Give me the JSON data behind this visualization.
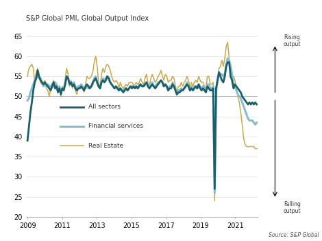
{
  "title": "S&P Global PMI, Global Output Index",
  "source_text": "Source: S&P Global",
  "rising_text": "Rising\noutput",
  "falling_text": "Falling\noutput",
  "color_all": "#1a5f6a",
  "color_fin": "#8bbccc",
  "color_re": "#c8a84b",
  "lw_all": 2.0,
  "lw_fin": 2.2,
  "lw_re": 1.1,
  "hline_y": 50,
  "hline_color": "#bbbbbb",
  "ylim": [
    20,
    68
  ],
  "yticks": [
    20,
    25,
    30,
    35,
    40,
    45,
    50,
    55,
    60,
    65
  ],
  "xtick_years": [
    2009,
    2011,
    2013,
    2015,
    2017,
    2019,
    2021
  ],
  "start_year": 2009.0,
  "end_year": 2022.5,
  "n_points": 162,
  "all_sectors": [
    39.0,
    42.5,
    46.0,
    48.5,
    51.5,
    53.5,
    54.5,
    56.5,
    55.0,
    54.0,
    53.5,
    53.0,
    53.5,
    53.0,
    52.5,
    52.0,
    51.5,
    52.5,
    53.5,
    52.0,
    52.5,
    51.0,
    52.0,
    50.5,
    52.0,
    51.5,
    53.0,
    55.0,
    54.5,
    53.0,
    53.5,
    52.5,
    53.0,
    52.0,
    51.5,
    52.0,
    52.0,
    52.5,
    52.0,
    51.5,
    52.5,
    53.0,
    52.5,
    52.0,
    52.5,
    53.5,
    54.0,
    54.5,
    53.5,
    52.5,
    52.0,
    53.5,
    54.0,
    53.5,
    54.0,
    55.0,
    54.5,
    53.5,
    53.0,
    52.5,
    52.0,
    52.5,
    52.0,
    51.5,
    52.0,
    51.5,
    51.0,
    51.5,
    52.0,
    51.5,
    52.0,
    52.5,
    52.0,
    52.5,
    52.0,
    52.5,
    52.0,
    52.5,
    53.0,
    52.5,
    52.5,
    53.0,
    53.5,
    52.5,
    52.0,
    52.5,
    53.0,
    52.5,
    52.0,
    52.5,
    53.0,
    53.5,
    54.0,
    53.5,
    52.5,
    53.0,
    52.5,
    51.5,
    52.0,
    52.0,
    53.0,
    52.5,
    51.5,
    50.5,
    51.0,
    51.0,
    51.5,
    51.5,
    52.0,
    52.5,
    53.0,
    52.5,
    51.5,
    52.0,
    51.5,
    52.0,
    52.5,
    52.0,
    53.0,
    52.0,
    51.5,
    52.0,
    51.5,
    51.0,
    52.5,
    52.0,
    51.5,
    51.5,
    52.0,
    27.0,
    52.0,
    54.0,
    56.0,
    55.0,
    54.0,
    53.5,
    55.0,
    57.5,
    58.5,
    58.5,
    55.0,
    54.0,
    52.0,
    53.0,
    52.5,
    52.0,
    51.5,
    51.0,
    50.0,
    49.5,
    49.0,
    48.5,
    48.0,
    48.5,
    48.0,
    48.5,
    48.0,
    48.5,
    48.0,
    48.0,
    48.0,
    48.0
  ],
  "financial": [
    49.0,
    49.5,
    51.0,
    52.0,
    53.0,
    54.0,
    54.5,
    55.5,
    54.5,
    54.5,
    53.5,
    52.5,
    53.0,
    52.5,
    53.0,
    52.5,
    52.5,
    53.0,
    53.5,
    53.5,
    53.0,
    52.0,
    52.5,
    51.5,
    52.0,
    52.0,
    53.5,
    55.0,
    54.5,
    53.5,
    53.5,
    53.0,
    53.5,
    52.5,
    52.0,
    52.5,
    52.5,
    53.0,
    52.5,
    52.0,
    52.0,
    52.5,
    52.0,
    52.5,
    52.5,
    53.0,
    54.5,
    55.0,
    53.5,
    52.5,
    52.0,
    54.0,
    54.5,
    54.0,
    54.5,
    55.0,
    54.5,
    53.5,
    53.0,
    52.5,
    52.0,
    52.5,
    52.0,
    51.5,
    52.0,
    51.5,
    51.5,
    52.0,
    52.0,
    51.5,
    52.0,
    52.5,
    52.5,
    52.5,
    52.5,
    52.5,
    52.0,
    53.0,
    53.0,
    52.5,
    52.5,
    53.0,
    53.5,
    53.0,
    52.5,
    53.0,
    53.5,
    52.5,
    52.5,
    53.0,
    53.5,
    53.5,
    54.0,
    53.5,
    52.5,
    53.0,
    52.5,
    51.5,
    52.5,
    52.5,
    53.5,
    52.5,
    51.5,
    50.5,
    51.5,
    51.5,
    52.0,
    51.5,
    52.0,
    52.5,
    53.5,
    52.5,
    51.5,
    52.5,
    51.5,
    52.5,
    52.5,
    52.0,
    53.0,
    52.5,
    52.0,
    52.5,
    52.0,
    51.5,
    53.0,
    53.0,
    52.0,
    52.0,
    52.5,
    26.0,
    51.5,
    54.0,
    56.0,
    55.5,
    55.5,
    55.0,
    55.5,
    58.0,
    59.5,
    59.0,
    57.5,
    55.5,
    53.0,
    52.5,
    51.5,
    50.5,
    50.0,
    49.5,
    48.5,
    47.5,
    46.5,
    45.5,
    44.5,
    44.0,
    44.0,
    44.0,
    43.5,
    43.0,
    43.5,
    43.5,
    43.5,
    43.5
  ],
  "real_estate": [
    55.0,
    57.0,
    57.5,
    58.0,
    57.0,
    53.5,
    56.0,
    57.0,
    55.0,
    53.5,
    53.0,
    53.5,
    54.0,
    52.0,
    51.5,
    50.0,
    52.0,
    53.0,
    54.0,
    52.5,
    53.0,
    51.5,
    52.5,
    50.0,
    52.5,
    51.5,
    54.5,
    57.0,
    55.5,
    52.5,
    54.0,
    52.0,
    53.0,
    51.5,
    50.5,
    52.0,
    52.0,
    53.0,
    52.0,
    51.0,
    53.0,
    55.0,
    54.5,
    54.5,
    55.0,
    56.0,
    58.5,
    60.0,
    57.5,
    53.5,
    52.0,
    55.5,
    57.0,
    56.0,
    57.5,
    58.0,
    57.5,
    56.5,
    55.0,
    54.0,
    53.5,
    54.0,
    53.5,
    52.0,
    53.5,
    52.5,
    52.0,
    52.5,
    53.0,
    52.5,
    53.5,
    53.5,
    53.5,
    53.0,
    53.0,
    53.5,
    53.0,
    53.5,
    54.5,
    53.5,
    53.0,
    54.5,
    55.5,
    53.5,
    52.5,
    54.5,
    55.5,
    54.5,
    53.5,
    54.0,
    55.0,
    55.5,
    56.5,
    55.0,
    54.0,
    55.5,
    55.0,
    53.5,
    54.0,
    54.0,
    55.0,
    54.5,
    52.5,
    51.0,
    52.5,
    52.5,
    53.5,
    52.5,
    53.5,
    54.0,
    55.0,
    54.0,
    52.0,
    53.5,
    52.5,
    53.5,
    54.0,
    53.5,
    55.0,
    54.0,
    53.5,
    53.5,
    52.5,
    52.0,
    55.0,
    55.0,
    53.0,
    53.0,
    53.5,
    24.0,
    49.0,
    54.0,
    57.0,
    57.5,
    59.0,
    57.5,
    59.5,
    62.5,
    63.5,
    59.5,
    56.0,
    54.5,
    55.0,
    54.0,
    52.0,
    50.0,
    48.5,
    46.0,
    43.0,
    39.5,
    38.0,
    37.5,
    37.5,
    37.5,
    37.5,
    37.5,
    37.5,
    37.0,
    37.0,
    37.0,
    37.0,
    37.0
  ]
}
